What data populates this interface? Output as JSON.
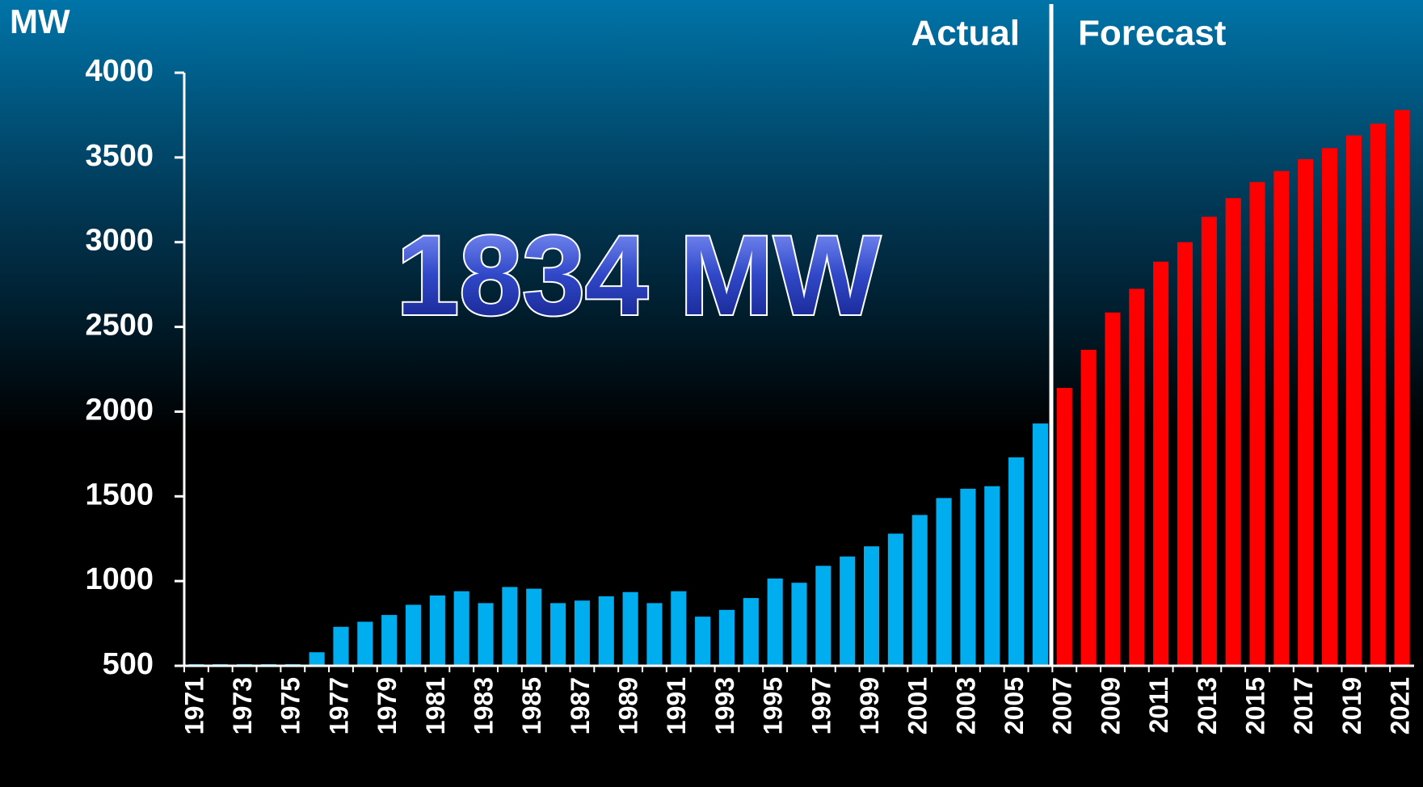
{
  "chart_data": {
    "type": "bar",
    "y_label": "MW",
    "annotation": "1834 MW",
    "categories": [
      "1971",
      null,
      "1973",
      null,
      "1975",
      null,
      "1977",
      null,
      "1979",
      null,
      "1981",
      null,
      "1983",
      null,
      "1985",
      null,
      "1987",
      null,
      "1989",
      null,
      "1991",
      null,
      "1993",
      null,
      "1995",
      null,
      "1997",
      null,
      "1999",
      null,
      "2001",
      null,
      "2003",
      null,
      "2005",
      null,
      "2007",
      null,
      "2009",
      null,
      "2011",
      null,
      "2013",
      null,
      "2015",
      null,
      "2017",
      null,
      "2019",
      null,
      "2021"
    ],
    "series": [
      {
        "name": "Actual",
        "color": "#00aeef",
        "values": [
          510,
          510,
          510,
          510,
          510,
          580,
          730,
          760,
          800,
          860,
          915,
          940,
          870,
          965,
          955,
          870,
          885,
          910,
          935,
          870,
          940,
          790,
          830,
          900,
          1015,
          990,
          1090,
          1145,
          1205,
          1280,
          1390,
          1490,
          1545,
          1560,
          1730,
          1930,
          null,
          null,
          null,
          null,
          null,
          null,
          null,
          null,
          null,
          null,
          null,
          null,
          null,
          null,
          null
        ]
      },
      {
        "name": "Forecast",
        "color": "#ff0000",
        "values": [
          null,
          null,
          null,
          null,
          null,
          null,
          null,
          null,
          null,
          null,
          null,
          null,
          null,
          null,
          null,
          null,
          null,
          null,
          null,
          null,
          null,
          null,
          null,
          null,
          null,
          null,
          null,
          null,
          null,
          null,
          null,
          null,
          null,
          null,
          null,
          null,
          2140,
          2365,
          2585,
          2725,
          2885,
          3000,
          3150,
          3260,
          3355,
          3420,
          3490,
          3555,
          3630,
          3700,
          3780
        ]
      }
    ],
    "ylim": [
      500,
      4000
    ],
    "yticks": [
      500,
      1000,
      1500,
      2000,
      2500,
      3000,
      3500,
      4000
    ]
  }
}
